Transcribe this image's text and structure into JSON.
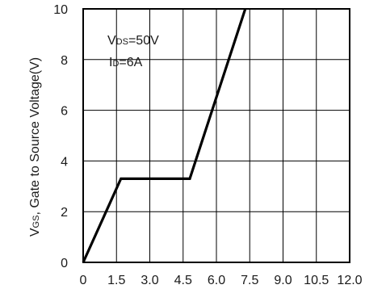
{
  "chart_data": {
    "type": "line",
    "title": "",
    "xlabel": "",
    "ylabel": {
      "main": "V",
      "sub": "GS",
      "rest": ", Gate to Source Voltage(V)"
    },
    "xlim": [
      0,
      12.0
    ],
    "ylim": [
      0,
      10
    ],
    "x_ticks": [
      "0",
      "1.5",
      "3.0",
      "4.5",
      "6.0",
      "7.5",
      "9.0",
      "10.5",
      "12.0"
    ],
    "y_ticks": [
      "0",
      "2",
      "4",
      "6",
      "8",
      "10"
    ],
    "grid": true,
    "series": [
      {
        "x": [
          0,
          1.7,
          4.8,
          7.3
        ],
        "y": [
          0,
          3.3,
          3.3,
          10
        ],
        "color": "#000000"
      }
    ],
    "annotations": [
      {
        "main": "V",
        "sub": "DS",
        "rest": "=50V"
      },
      {
        "main": "I",
        "sub": "D",
        "rest": "=6A"
      }
    ]
  }
}
